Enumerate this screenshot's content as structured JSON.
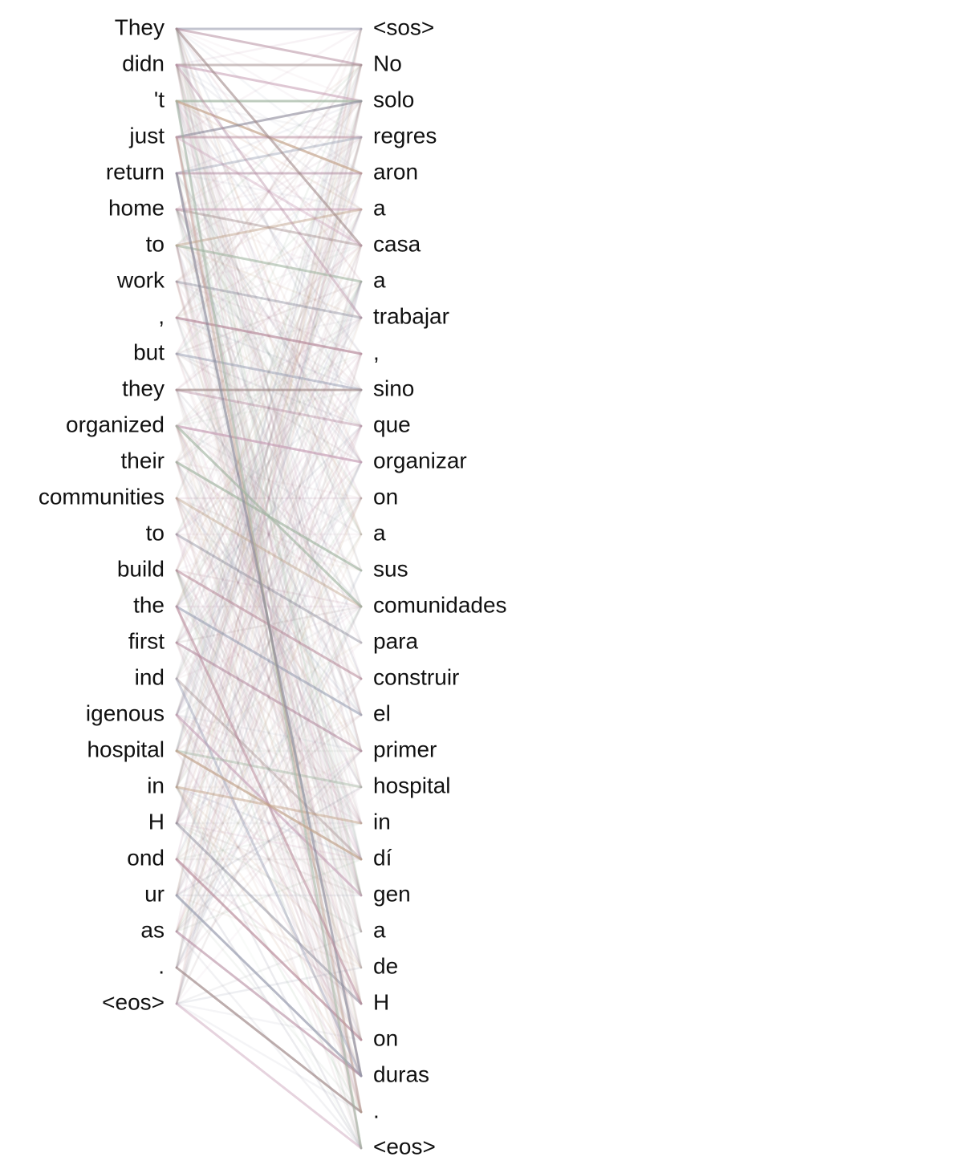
{
  "source_tokens": [
    "They",
    "didn",
    "'t",
    "just",
    "return",
    "home",
    "to",
    "work",
    ",",
    "but",
    "they",
    "organized",
    "their",
    "communities",
    "to",
    "build",
    "the",
    "first",
    "ind",
    "igenous",
    "hospital",
    "in",
    "H",
    "ond",
    "ur",
    "as",
    ".",
    "<eos>"
  ],
  "target_tokens": [
    "<sos>",
    "No",
    "solo",
    "regres",
    "aron",
    "a",
    "casa",
    "a",
    "trabajar",
    ",",
    "sino",
    "que",
    "organizar",
    "on",
    "a",
    "sus",
    "comunidades",
    "para",
    "construir",
    "el",
    "primer",
    "hospital",
    "in",
    "dí",
    "gen",
    "a",
    "de",
    "H",
    "on",
    "duras",
    ".",
    "<eos>"
  ],
  "palette": [
    "#9aa0b4",
    "#b48aa0",
    "#a08a8a",
    "#c9a0b8",
    "#a0b4a0",
    "#c4a48a",
    "#8a8a9a",
    "#b88a9a"
  ],
  "strong_links": [
    [
      0,
      0
    ],
    [
      0,
      1
    ],
    [
      1,
      1
    ],
    [
      1,
      2
    ],
    [
      2,
      2
    ],
    [
      2,
      4
    ],
    [
      3,
      2
    ],
    [
      3,
      3
    ],
    [
      4,
      3
    ],
    [
      4,
      4
    ],
    [
      5,
      6
    ],
    [
      5,
      5
    ],
    [
      6,
      7
    ],
    [
      6,
      5
    ],
    [
      7,
      8
    ],
    [
      8,
      9
    ],
    [
      9,
      10
    ],
    [
      10,
      11
    ],
    [
      10,
      10
    ],
    [
      11,
      12
    ],
    [
      12,
      15
    ],
    [
      13,
      16
    ],
    [
      14,
      17
    ],
    [
      15,
      18
    ],
    [
      16,
      19
    ],
    [
      17,
      20
    ],
    [
      18,
      23
    ],
    [
      19,
      24
    ],
    [
      20,
      21
    ],
    [
      21,
      22
    ],
    [
      22,
      27
    ],
    [
      23,
      28
    ],
    [
      24,
      29
    ],
    [
      25,
      29
    ],
    [
      26,
      30
    ],
    [
      27,
      31
    ],
    [
      2,
      31
    ],
    [
      3,
      30
    ],
    [
      4,
      29
    ],
    [
      16,
      27
    ],
    [
      18,
      29
    ],
    [
      1,
      8
    ],
    [
      0,
      6
    ],
    [
      3,
      6
    ],
    [
      11,
      16
    ],
    [
      20,
      23
    ]
  ]
}
